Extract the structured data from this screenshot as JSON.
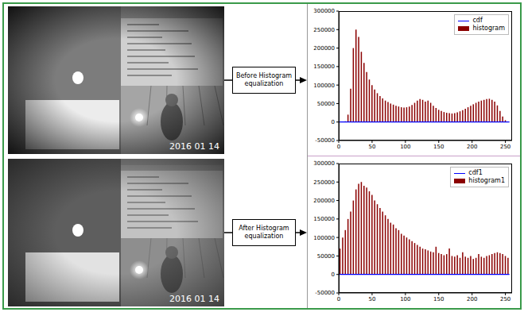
{
  "photos": [
    {
      "timestamp": "2016 01 14"
    },
    {
      "timestamp": "2016 01 14"
    }
  ],
  "arrows": [
    "Before Histogram equalization",
    "After Histogram equalization"
  ],
  "chart_data": [
    {
      "type": "histogram",
      "bins": [
        0,
        4,
        8,
        12,
        16,
        20,
        24,
        28,
        32,
        36,
        40,
        44,
        48,
        52,
        56,
        60,
        64,
        68,
        72,
        76,
        80,
        84,
        88,
        92,
        96,
        100,
        104,
        108,
        112,
        116,
        120,
        124,
        128,
        132,
        136,
        140,
        144,
        148,
        152,
        156,
        160,
        164,
        168,
        172,
        176,
        180,
        184,
        188,
        192,
        196,
        200,
        204,
        208,
        212,
        216,
        220,
        224,
        228,
        232,
        236,
        240,
        244,
        248,
        252,
        256
      ],
      "series": [
        {
          "name": "cdf",
          "type": "line",
          "color": "#0000ff",
          "x": [
            0,
            256
          ],
          "values": [
            0,
            0
          ]
        },
        {
          "name": "histogram",
          "type": "bar",
          "color": "#8b0000",
          "values": [
            0,
            0,
            2000,
            20000,
            90000,
            200000,
            250000,
            230000,
            190000,
            160000,
            135000,
            115000,
            100000,
            88000,
            78000,
            70000,
            64000,
            58000,
            54000,
            50000,
            47000,
            44000,
            42000,
            40000,
            39000,
            40000,
            42000,
            46000,
            52000,
            58000,
            62000,
            60000,
            55000,
            58000,
            52000,
            44000,
            38000,
            33000,
            30000,
            27000,
            25000,
            24000,
            23000,
            24000,
            26000,
            29000,
            32000,
            36000,
            40000,
            44000,
            48000,
            52000,
            55000,
            58000,
            60000,
            62000,
            63000,
            60000,
            55000,
            45000,
            30000,
            15000,
            5000,
            0
          ]
        }
      ],
      "xlim": [
        0,
        260
      ],
      "ylim": [
        -50000,
        300000
      ],
      "xticks": [
        0,
        50,
        100,
        150,
        200,
        250
      ],
      "yticks": [
        -50000,
        0,
        50000,
        100000,
        150000,
        200000,
        250000,
        300000
      ],
      "legend": "upper right"
    },
    {
      "type": "histogram",
      "bins": [
        0,
        4,
        8,
        12,
        16,
        20,
        24,
        28,
        32,
        36,
        40,
        44,
        48,
        52,
        56,
        60,
        64,
        68,
        72,
        76,
        80,
        84,
        88,
        92,
        96,
        100,
        104,
        108,
        112,
        116,
        120,
        124,
        128,
        132,
        136,
        140,
        144,
        148,
        152,
        156,
        160,
        164,
        168,
        172,
        176,
        180,
        184,
        188,
        192,
        196,
        200,
        204,
        208,
        212,
        216,
        220,
        224,
        228,
        232,
        236,
        240,
        244,
        248,
        252,
        256
      ],
      "series": [
        {
          "name": "cdf1",
          "type": "line",
          "color": "#0000ff",
          "x": [
            0,
            256
          ],
          "values": [
            0,
            0
          ]
        },
        {
          "name": "histogram1",
          "type": "bar",
          "color": "#8b0000",
          "values": [
            70000,
            100000,
            120000,
            150000,
            170000,
            200000,
            230000,
            245000,
            250000,
            240000,
            235000,
            225000,
            215000,
            200000,
            190000,
            180000,
            170000,
            160000,
            150000,
            140000,
            135000,
            125000,
            120000,
            110000,
            105000,
            100000,
            95000,
            90000,
            85000,
            80000,
            75000,
            70000,
            68000,
            65000,
            62000,
            60000,
            75000,
            58000,
            55000,
            52000,
            55000,
            70000,
            50000,
            48000,
            52000,
            45000,
            60000,
            48000,
            45000,
            50000,
            42000,
            45000,
            55000,
            48000,
            45000,
            50000,
            52000,
            55000,
            58000,
            60000,
            58000,
            55000,
            50000,
            45000
          ]
        }
      ],
      "xlim": [
        0,
        260
      ],
      "ylim": [
        -50000,
        300000
      ],
      "xticks": [
        0,
        50,
        100,
        150,
        200,
        250
      ],
      "yticks": [
        -50000,
        0,
        50000,
        100000,
        150000,
        200000,
        250000,
        300000
      ],
      "legend": "upper right"
    }
  ]
}
